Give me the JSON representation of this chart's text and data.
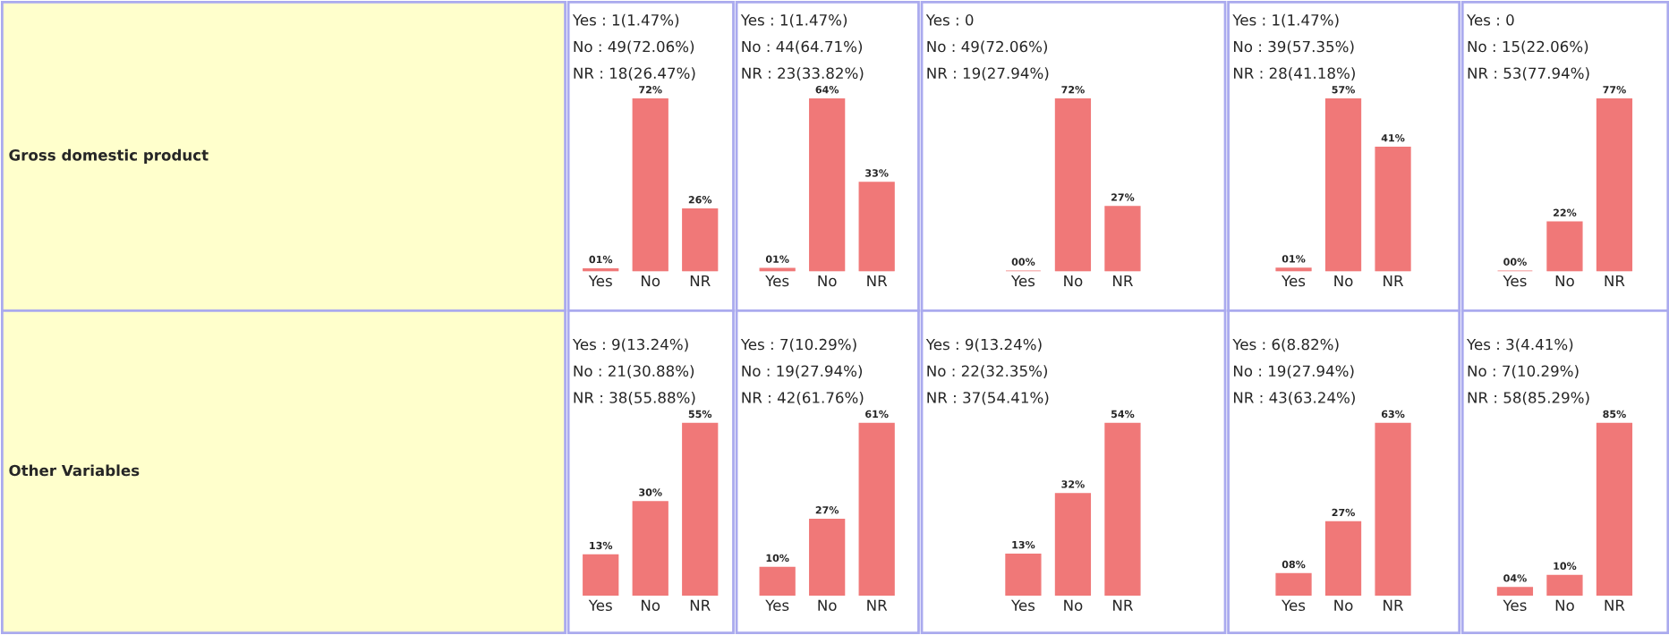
{
  "chart_data": [
    {
      "type": "other",
      "annotations": [
        "Gross domestic product"
      ]
    },
    {
      "type": "bar",
      "categories": [
        "Yes",
        "No",
        "NR"
      ],
      "values": [
        1,
        72,
        26
      ],
      "value_labels": [
        "01%",
        "72%",
        "26%"
      ],
      "color": "#f07878",
      "tick_labels": "x",
      "annotations": [
        "Yes : 1(1.47%)",
        "No : 49(72.06%)",
        "NR : 18(26.47%)"
      ]
    },
    {
      "type": "bar",
      "categories": [
        "Yes",
        "No",
        "NR"
      ],
      "values": [
        1,
        64,
        33
      ],
      "value_labels": [
        "01%",
        "64%",
        "33%"
      ],
      "color": "#f07878",
      "tick_labels": "x",
      "annotations": [
        "Yes : 1(1.47%)",
        "No : 44(64.71%)",
        "NR : 23(33.82%)"
      ]
    },
    {
      "type": "bar",
      "categories": [
        "Yes",
        "No",
        "NR"
      ],
      "values": [
        0,
        72,
        27
      ],
      "value_labels": [
        "00%",
        "72%",
        "27%"
      ],
      "color": "#f07878",
      "tick_labels": "x",
      "annotations": [
        "Yes : 0",
        "No : 49(72.06%)",
        "NR : 19(27.94%)"
      ]
    },
    {
      "type": "bar",
      "categories": [
        "Yes",
        "No",
        "NR"
      ],
      "values": [
        1,
        57,
        41
      ],
      "value_labels": [
        "01%",
        "57%",
        "41%"
      ],
      "color": "#f07878",
      "tick_labels": "x",
      "annotations": [
        "Yes : 1(1.47%)",
        "No : 39(57.35%)",
        "NR : 28(41.18%)"
      ]
    },
    {
      "type": "bar",
      "categories": [
        "Yes",
        "No",
        "NR"
      ],
      "values": [
        0,
        22,
        77
      ],
      "value_labels": [
        "00%",
        "22%",
        "77%"
      ],
      "color": "#f07878",
      "tick_labels": "x",
      "annotations": [
        "Yes : 0",
        "No : 15(22.06%)",
        "NR : 53(77.94%)"
      ]
    },
    {
      "type": "other",
      "annotations": [
        "Other Variables"
      ]
    },
    {
      "type": "bar",
      "categories": [
        "Yes",
        "No",
        "NR"
      ],
      "values": [
        13,
        30,
        55
      ],
      "value_labels": [
        "13%",
        "30%",
        "55%"
      ],
      "color": "#f07878",
      "tick_labels": "x",
      "annotations": [
        "Yes : 9(13.24%)",
        "No : 21(30.88%)",
        "NR : 38(55.88%)"
      ]
    },
    {
      "type": "bar",
      "categories": [
        "Yes",
        "No",
        "NR"
      ],
      "values": [
        10,
        27,
        61
      ],
      "value_labels": [
        "10%",
        "27%",
        "61%"
      ],
      "color": "#f07878",
      "tick_labels": "x",
      "annotations": [
        "Yes : 7(10.29%)",
        "No : 19(27.94%)",
        "NR : 42(61.76%)"
      ]
    },
    {
      "type": "bar",
      "categories": [
        "Yes",
        "No",
        "NR"
      ],
      "values": [
        13,
        32,
        54
      ],
      "value_labels": [
        "13%",
        "32%",
        "54%"
      ],
      "color": "#f07878",
      "tick_labels": "x",
      "annotations": [
        "Yes : 9(13.24%)",
        "No : 22(32.35%)",
        "NR : 37(54.41%)"
      ]
    },
    {
      "type": "bar",
      "categories": [
        "Yes",
        "No",
        "NR"
      ],
      "values": [
        8,
        27,
        63
      ],
      "value_labels": [
        "08%",
        "27%",
        "63%"
      ],
      "color": "#f07878",
      "tick_labels": "x",
      "annotations": [
        "Yes : 6(8.82%)",
        "No : 19(27.94%)",
        "NR : 43(63.24%)"
      ]
    },
    {
      "type": "bar",
      "categories": [
        "Yes",
        "No",
        "NR"
      ],
      "values": [
        4,
        10,
        85
      ],
      "value_labels": [
        "04%",
        "10%",
        "85%"
      ],
      "color": "#f07878",
      "tick_labels": "x",
      "annotations": [
        "Yes : 3(4.41%)",
        "No : 7(10.29%)",
        "NR : 58(85.29%)"
      ]
    }
  ]
}
